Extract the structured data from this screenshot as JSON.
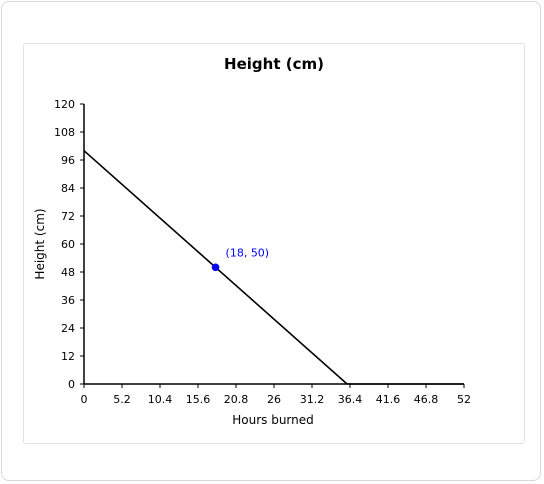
{
  "chart_data": {
    "type": "line",
    "title": "Height (cm)",
    "xlabel": "Hours burned",
    "ylabel": "Height (cm)",
    "xlim": [
      0,
      52
    ],
    "ylim": [
      0,
      120
    ],
    "x_ticks": [
      0,
      5.2,
      10.4,
      15.6,
      20.8,
      26,
      31.2,
      36.4,
      41.6,
      46.8,
      52
    ],
    "x_tick_labels": [
      "0",
      "5.2",
      "10.4",
      "15.6",
      "20.8",
      "26",
      "31.2",
      "36.4",
      "41.6",
      "46.8",
      "52"
    ],
    "y_ticks": [
      0,
      12,
      24,
      36,
      48,
      60,
      72,
      84,
      96,
      108,
      120
    ],
    "y_tick_labels": [
      "0",
      "12",
      "24",
      "36",
      "48",
      "60",
      "72",
      "84",
      "96",
      "108",
      "120"
    ],
    "series": [
      {
        "points": [
          [
            0,
            100
          ],
          [
            36,
            0
          ]
        ],
        "color": "#000000"
      },
      {
        "points": [
          [
            36,
            0
          ],
          [
            52,
            0
          ]
        ],
        "color": "#000000"
      }
    ],
    "highlight_point": {
      "x": 18,
      "y": 50,
      "label": "(18, 50)",
      "color": "#0000ff"
    },
    "grid": false
  }
}
